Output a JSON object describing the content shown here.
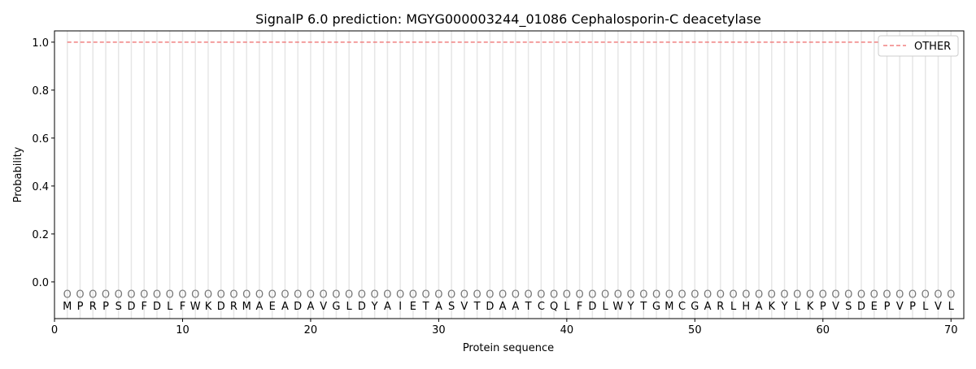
{
  "chart_data": {
    "type": "line",
    "title": "SignalP 6.0 prediction: MGYG000003244_01086 Cephalosporin-C deacetylase",
    "xlabel": "Protein sequence",
    "ylabel": "Probability",
    "xlim": [
      0,
      71
    ],
    "ylim": [
      -0.153,
      1.047
    ],
    "xticks": [
      0,
      10,
      20,
      30,
      40,
      50,
      60,
      70
    ],
    "yticks": [
      0.0,
      0.2,
      0.4,
      0.6,
      0.8,
      1.0
    ],
    "ytick_labels": [
      "0.0",
      "0.2",
      "0.4",
      "0.6",
      "0.8",
      "1.0"
    ],
    "grid": "vertical lines at each residue",
    "legend_position": "top-right",
    "sequence": [
      "M",
      "P",
      "R",
      "P",
      "S",
      "D",
      "F",
      "D",
      "L",
      "F",
      "W",
      "K",
      "D",
      "R",
      "M",
      "A",
      "E",
      "A",
      "D",
      "A",
      "V",
      "G",
      "L",
      "D",
      "Y",
      "A",
      "I",
      "E",
      "T",
      "A",
      "S",
      "V",
      "T",
      "D",
      "A",
      "A",
      "T",
      "C",
      "Q",
      "L",
      "F",
      "D",
      "L",
      "W",
      "Y",
      "T",
      "G",
      "M",
      "C",
      "G",
      "A",
      "R",
      "L",
      "H",
      "A",
      "K",
      "Y",
      "L",
      "K",
      "P",
      "V",
      "S",
      "D",
      "E",
      "P",
      "V",
      "P",
      "L",
      "V",
      "L"
    ],
    "predicted_label": "O",
    "series": [
      {
        "name": "OTHER",
        "color": "#f08080",
        "style": "dashed",
        "x_range": [
          1,
          70
        ],
        "value": 1.0
      }
    ]
  }
}
